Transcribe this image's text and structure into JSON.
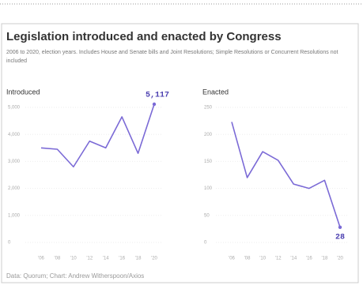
{
  "header": {
    "title": "Legislation introduced and enacted by Congress",
    "subtitle": "2006 to 2020, election years. Includes House and Senate bills and Joint Resolutions; Simple Resolutions or Concurrent Resolutions not included"
  },
  "footer": {
    "source": "Data: Quorum; Chart: Andrew Witherspoon/Axios"
  },
  "chart_data": [
    {
      "type": "line",
      "title": "Introduced",
      "color": "#7b6ad6",
      "categories": [
        "'06",
        "'08",
        "'10",
        "'12",
        "'14",
        "'16",
        "'18",
        "'20"
      ],
      "values": [
        3500,
        3450,
        2800,
        3750,
        3500,
        4650,
        3300,
        5117
      ],
      "value_labels": [
        null,
        null,
        null,
        null,
        null,
        null,
        null,
        "5,117"
      ],
      "ylim": [
        0,
        5000
      ],
      "yticks": [
        0,
        {
          "value": 1000,
          "label": "1,000"
        },
        {
          "value": 2000,
          "label": "2,000"
        },
        {
          "value": 3000,
          "label": "3,000"
        },
        {
          "value": 4000,
          "label": "4,000"
        },
        {
          "value": 5000,
          "label": "5,000"
        }
      ]
    },
    {
      "type": "line",
      "title": "Enacted",
      "color": "#7b6ad6",
      "categories": [
        "'06",
        "'08",
        "'10",
        "'12",
        "'14",
        "'16",
        "'18",
        "'20"
      ],
      "values": [
        223,
        120,
        168,
        152,
        108,
        100,
        115,
        28
      ],
      "value_labels": [
        null,
        null,
        null,
        null,
        null,
        null,
        null,
        "28"
      ],
      "ylim": [
        0,
        250
      ],
      "yticks": [
        0,
        50,
        100,
        150,
        200,
        250
      ]
    }
  ]
}
